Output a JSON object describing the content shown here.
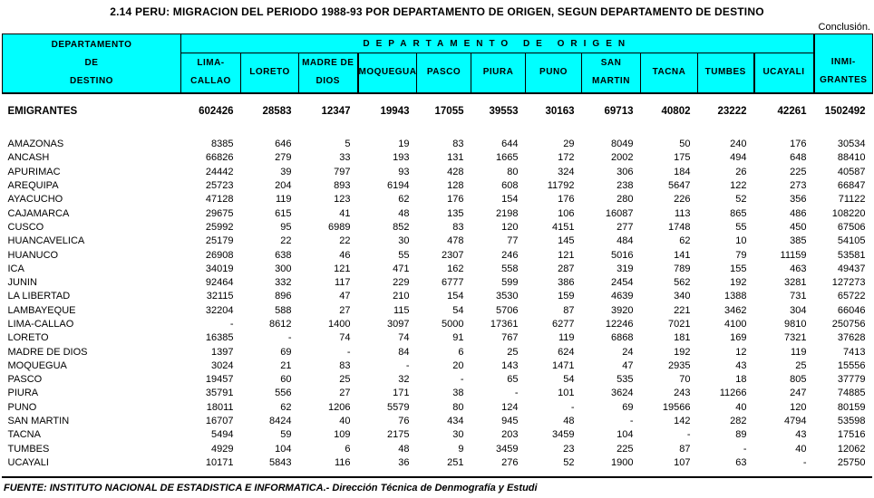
{
  "page": {
    "title": "2.14  PERU: MIGRACION DEL PERIODO 1988-93 POR DEPARTAMENTO DE ORIGEN, SEGUN DEPARTAMENTO DE DESTINO",
    "conclusion": "Conclusión."
  },
  "colors": {
    "header_bg": "#00ffff",
    "border": "#000000",
    "text": "#000000"
  },
  "table": {
    "destino_header_lines": [
      "DEPARTAMENTO",
      "DE",
      "DESTINO"
    ],
    "origen_banner": "DEPARTAMENTO  DE  ORIGEN",
    "columns": [
      {
        "id": "lima-callao",
        "lines": [
          "LIMA-",
          "CALLAO"
        ],
        "thick_left": false
      },
      {
        "id": "loreto",
        "lines": [
          "LORETO",
          ""
        ],
        "thick_left": false
      },
      {
        "id": "madre-de-dios",
        "lines": [
          "MADRE DE",
          "DIOS"
        ],
        "thick_left": false
      },
      {
        "id": "moquegua",
        "lines": [
          "MOQUEGUA",
          ""
        ],
        "thick_left": true
      },
      {
        "id": "pasco",
        "lines": [
          "PASCO",
          ""
        ],
        "thick_left": false
      },
      {
        "id": "piura",
        "lines": [
          "PIURA",
          ""
        ],
        "thick_left": false
      },
      {
        "id": "puno",
        "lines": [
          "PUNO",
          ""
        ],
        "thick_left": false
      },
      {
        "id": "san-martin",
        "lines": [
          "SAN",
          "MARTIN"
        ],
        "thick_left": false
      },
      {
        "id": "tacna",
        "lines": [
          "TACNA",
          ""
        ],
        "thick_left": false
      },
      {
        "id": "tumbes",
        "lines": [
          "TUMBES",
          ""
        ],
        "thick_left": false
      },
      {
        "id": "ucayali",
        "lines": [
          "UCAYALI",
          ""
        ],
        "thick_left": true
      },
      {
        "id": "inmigrantes",
        "lines": [
          "INMI-",
          "GRANTES"
        ],
        "thick_left": true
      }
    ],
    "totals_row": {
      "label": "EMIGRANTES",
      "values": [
        602426,
        28583,
        12347,
        19943,
        17055,
        39553,
        30163,
        69713,
        40802,
        23222,
        42261,
        1502492
      ]
    },
    "rows": [
      {
        "label": "AMAZONAS",
        "values": [
          8385,
          646,
          5,
          19,
          83,
          644,
          29,
          8049,
          50,
          240,
          176,
          30534
        ]
      },
      {
        "label": "ANCASH",
        "values": [
          66826,
          279,
          33,
          193,
          131,
          1665,
          172,
          2002,
          175,
          494,
          648,
          88410
        ]
      },
      {
        "label": "APURIMAC",
        "values": [
          24442,
          39,
          797,
          93,
          428,
          80,
          324,
          306,
          184,
          26,
          225,
          40587
        ]
      },
      {
        "label": "AREQUIPA",
        "values": [
          25723,
          204,
          893,
          6194,
          128,
          608,
          11792,
          238,
          5647,
          122,
          273,
          66847
        ]
      },
      {
        "label": "AYACUCHO",
        "values": [
          47128,
          119,
          123,
          62,
          176,
          154,
          176,
          280,
          226,
          52,
          356,
          71122
        ]
      },
      {
        "label": "CAJAMARCA",
        "values": [
          29675,
          615,
          41,
          48,
          135,
          2198,
          106,
          16087,
          113,
          865,
          486,
          108220
        ]
      },
      {
        "label": "CUSCO",
        "values": [
          25992,
          95,
          6989,
          852,
          83,
          120,
          4151,
          277,
          1748,
          55,
          450,
          67506
        ]
      },
      {
        "label": "HUANCAVELICA",
        "values": [
          25179,
          22,
          22,
          30,
          478,
          77,
          145,
          484,
          62,
          10,
          385,
          54105
        ]
      },
      {
        "label": "HUANUCO",
        "values": [
          26908,
          638,
          46,
          55,
          2307,
          246,
          121,
          5016,
          141,
          79,
          11159,
          53581
        ]
      },
      {
        "label": "ICA",
        "values": [
          34019,
          300,
          121,
          471,
          162,
          558,
          287,
          319,
          789,
          155,
          463,
          49437
        ]
      },
      {
        "label": "JUNIN",
        "values": [
          92464,
          332,
          117,
          229,
          6777,
          599,
          386,
          2454,
          562,
          192,
          3281,
          127273
        ]
      },
      {
        "label": "LA LIBERTAD",
        "values": [
          32115,
          896,
          47,
          210,
          154,
          3530,
          159,
          4639,
          340,
          1388,
          731,
          65722
        ]
      },
      {
        "label": "LAMBAYEQUE",
        "values": [
          32204,
          588,
          27,
          115,
          54,
          5706,
          87,
          3920,
          221,
          3462,
          304,
          66046
        ]
      },
      {
        "label": "LIMA-CALLAO",
        "values": [
          "-",
          8612,
          1400,
          3097,
          5000,
          17361,
          6277,
          12246,
          7021,
          4100,
          9810,
          250756
        ]
      },
      {
        "label": "LORETO",
        "values": [
          16385,
          "-",
          74,
          74,
          91,
          767,
          119,
          6868,
          181,
          169,
          7321,
          37628
        ]
      },
      {
        "label": "MADRE DE DIOS",
        "values": [
          1397,
          69,
          "-",
          84,
          6,
          25,
          624,
          24,
          192,
          12,
          119,
          7413
        ]
      },
      {
        "label": "MOQUEGUA",
        "values": [
          3024,
          21,
          83,
          "-",
          20,
          143,
          1471,
          47,
          2935,
          43,
          25,
          15556
        ]
      },
      {
        "label": "PASCO",
        "values": [
          19457,
          60,
          25,
          32,
          "-",
          65,
          54,
          535,
          70,
          18,
          805,
          37779
        ]
      },
      {
        "label": "PIURA",
        "values": [
          35791,
          556,
          27,
          171,
          38,
          "-",
          101,
          3624,
          243,
          11266,
          247,
          74885
        ]
      },
      {
        "label": "PUNO",
        "values": [
          18011,
          62,
          1206,
          5579,
          80,
          124,
          "-",
          69,
          19566,
          40,
          120,
          80159
        ]
      },
      {
        "label": "SAN MARTIN",
        "values": [
          16707,
          8424,
          40,
          76,
          434,
          945,
          48,
          "-",
          142,
          282,
          4794,
          53598
        ]
      },
      {
        "label": "TACNA",
        "values": [
          5494,
          59,
          109,
          2175,
          30,
          203,
          3459,
          104,
          "-",
          89,
          43,
          17516
        ]
      },
      {
        "label": "TUMBES",
        "values": [
          4929,
          104,
          6,
          48,
          9,
          3459,
          23,
          225,
          87,
          "-",
          40,
          12062
        ]
      },
      {
        "label": "UCAYALI",
        "values": [
          10171,
          5843,
          116,
          36,
          251,
          276,
          52,
          1900,
          107,
          63,
          "-",
          25750
        ]
      }
    ]
  },
  "footer": {
    "source": "FUENTE: INSTITUTO NACIONAL DE ESTADISTICA E INFORMATICA.- Dirección Técnica de Denmografía y Estudi"
  }
}
